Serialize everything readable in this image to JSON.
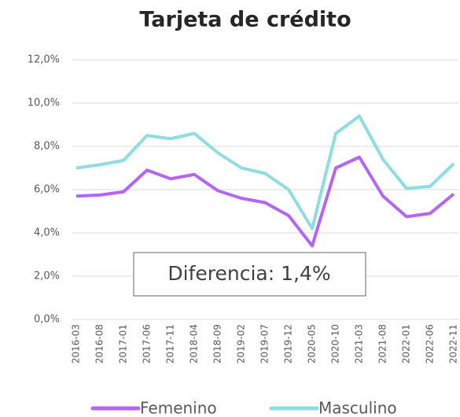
{
  "chart_data": {
    "type": "line",
    "title": "Tarjeta de crédito",
    "categories": [
      "2016-03",
      "2016-08",
      "2017-01",
      "2017-06",
      "2017-11",
      "2018-04",
      "2018-09",
      "2019-02",
      "2019-07",
      "2019-12",
      "2020-05",
      "2020-10",
      "2021-03",
      "2021-08",
      "2022-01",
      "2022-06",
      "2022-11"
    ],
    "series": [
      {
        "name": "Femenino",
        "color": "#b366f5",
        "values": [
          5.7,
          5.75,
          5.9,
          6.9,
          6.5,
          6.7,
          5.95,
          5.6,
          5.4,
          4.8,
          3.4,
          7.0,
          7.5,
          5.7,
          4.75,
          4.9,
          5.8
        ]
      },
      {
        "name": "Masculino",
        "color": "#8fdde0",
        "values": [
          7.0,
          7.15,
          7.35,
          8.5,
          8.35,
          8.6,
          7.7,
          7.0,
          6.75,
          6.0,
          4.2,
          8.6,
          9.4,
          7.4,
          6.05,
          6.15,
          7.2
        ]
      }
    ],
    "ylim": [
      0,
      12
    ],
    "yticks": [
      {
        "value": 0,
        "label": "0,0%"
      },
      {
        "value": 2,
        "label": "2,0%"
      },
      {
        "value": 4,
        "label": "4,0%"
      },
      {
        "value": 6,
        "label": "6,0%"
      },
      {
        "value": 8,
        "label": "8,0%"
      },
      {
        "value": 10,
        "label": "10,0%"
      },
      {
        "value": 12,
        "label": "12,0%"
      }
    ],
    "grid": true,
    "annotation": "Diferencia: 1,4%",
    "legend": "bottom"
  }
}
